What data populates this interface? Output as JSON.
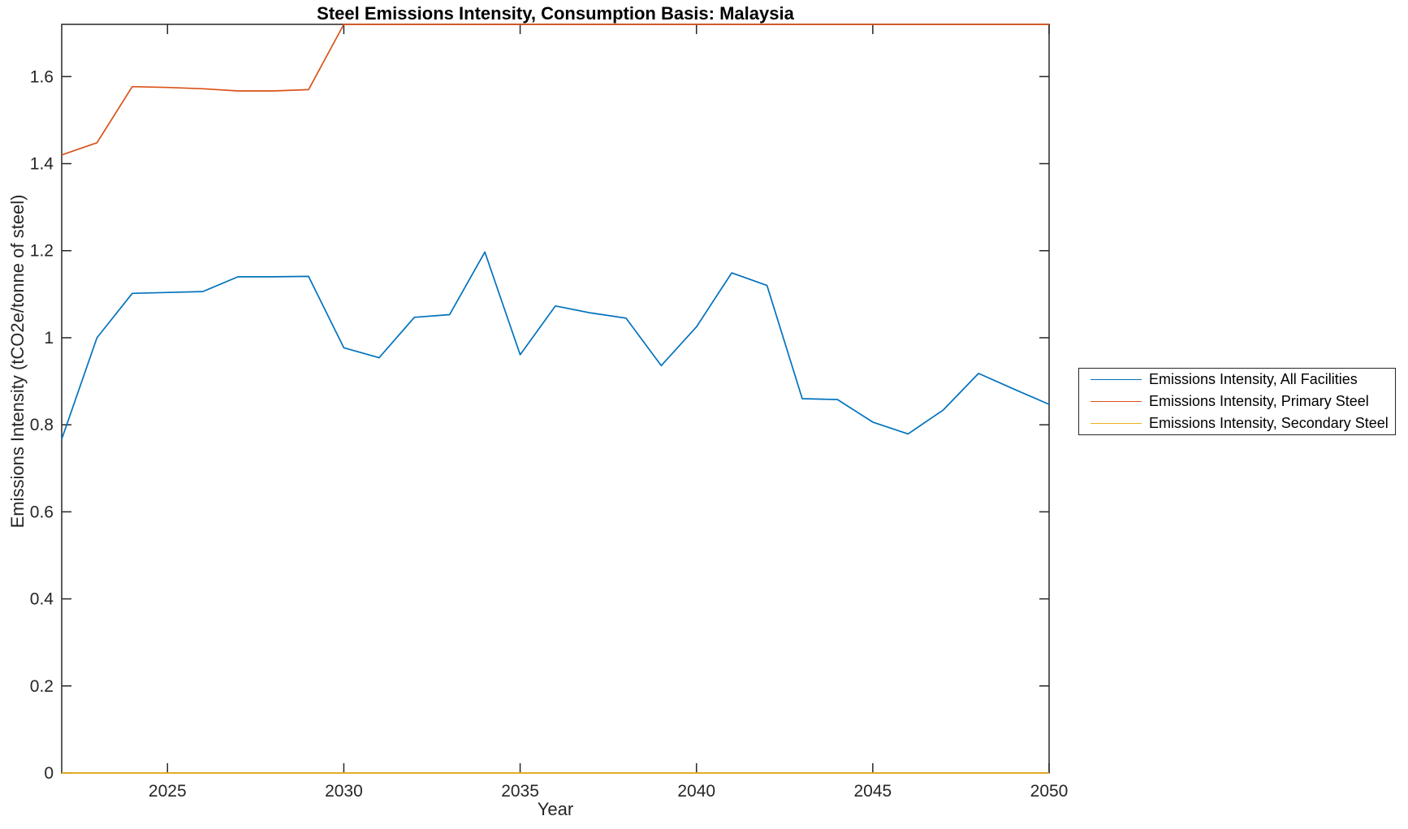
{
  "chart": {
    "title": "Steel Emissions Intensity, Consumption Basis: Malaysia",
    "xlabel": "Year",
    "ylabel": "Emissions Intensity (tCO2e/tonne of steel)"
  },
  "chart_data": {
    "type": "line",
    "title": "Steel Emissions Intensity, Consumption Basis: Malaysia",
    "xlabel": "Year",
    "ylabel": "Emissions Intensity (tCO2e/tonne of steel)",
    "x": [
      2022,
      2023,
      2024,
      2025,
      2026,
      2027,
      2028,
      2029,
      2030,
      2031,
      2032,
      2033,
      2034,
      2035,
      2036,
      2037,
      2038,
      2039,
      2040,
      2041,
      2042,
      2043,
      2044,
      2045,
      2046,
      2047,
      2048,
      2049,
      2050
    ],
    "series": [
      {
        "name": "Emissions Intensity, All Facilities",
        "color": "#0072BD",
        "values": [
          0.767,
          1.0,
          1.102,
          1.104,
          1.106,
          1.14,
          1.14,
          1.141,
          0.977,
          0.954,
          1.047,
          1.053,
          1.197,
          0.961,
          1.073,
          1.057,
          1.045,
          0.936,
          1.025,
          1.149,
          1.12,
          0.86,
          0.858,
          0.806,
          0.779,
          0.834,
          0.918,
          0.882,
          0.847
        ]
      },
      {
        "name": "Emissions Intensity, Primary Steel",
        "color": "#D95319",
        "values": [
          1.42,
          1.448,
          1.577,
          1.575,
          1.572,
          1.567,
          1.567,
          1.57,
          1.72,
          1.72,
          1.72,
          1.72,
          1.72,
          1.72,
          1.72,
          1.72,
          1.72,
          1.72,
          1.72,
          1.72,
          1.72,
          1.72,
          1.72,
          1.72,
          1.72,
          1.72,
          1.72,
          1.72,
          1.72
        ]
      },
      {
        "name": "Emissions Intensity, Secondary Steel",
        "color": "#EDB120",
        "values": [
          0,
          0,
          0,
          0,
          0,
          0,
          0,
          0,
          0,
          0,
          0,
          0,
          0,
          0,
          0,
          0,
          0,
          0,
          0,
          0,
          0,
          0,
          0,
          0,
          0,
          0,
          0,
          0,
          0
        ]
      }
    ],
    "xlim": [
      2022,
      2050
    ],
    "ylim": [
      0,
      1.72
    ],
    "xticks": [
      2025,
      2030,
      2035,
      2040,
      2045,
      2050
    ],
    "xtick_labels": [
      "2025",
      "2030",
      "2035",
      "2040",
      "2045",
      "2050"
    ],
    "yticks": [
      0,
      0.2,
      0.4,
      0.6,
      0.8,
      1,
      1.2,
      1.4,
      1.6
    ],
    "ytick_labels": [
      "0",
      "0.2",
      "0.4",
      "0.6",
      "0.8",
      "1",
      "1.2",
      "1.4",
      "1.6"
    ],
    "grid": false,
    "legend_position": "right-outside",
    "axis_color": "#262626",
    "background_color": "#FFFFFF"
  },
  "legend": {
    "entries": [
      {
        "label": "Emissions Intensity, All Facilities",
        "color": "#0072BD"
      },
      {
        "label": "Emissions Intensity, Primary Steel",
        "color": "#D95319"
      },
      {
        "label": "Emissions Intensity, Secondary Steel",
        "color": "#EDB120"
      }
    ]
  }
}
